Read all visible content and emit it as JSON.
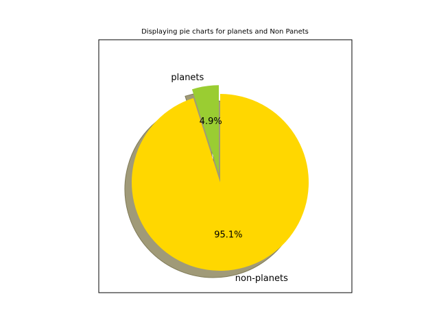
{
  "chart_data": {
    "type": "pie",
    "title": "Displaying pie charts for planets and Non Panets",
    "slices": [
      {
        "label": "planets",
        "value": 4.9,
        "pct_label": "4.9%",
        "color": "#9acd32",
        "exploded": true
      },
      {
        "label": "non-planets",
        "value": 95.1,
        "pct_label": "95.1%",
        "color": "#ffd700",
        "exploded": false
      }
    ],
    "shadow": true,
    "shadow_color": "#a09a78",
    "start_angle": 90,
    "direction": "counterclockwise",
    "frame": true,
    "grid": false,
    "legend": "none"
  }
}
